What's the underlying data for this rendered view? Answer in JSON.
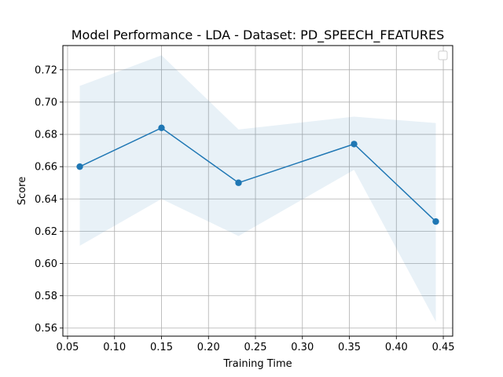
{
  "chart_data": {
    "type": "line",
    "title": "Model Performance - LDA - Dataset: PD_SPEECH_FEATURES",
    "xlabel": "Training Time",
    "ylabel": "Score",
    "xlim": [
      0.045,
      0.46
    ],
    "ylim": [
      0.555,
      0.735
    ],
    "xticks": [
      0.05,
      0.1,
      0.15,
      0.2,
      0.25,
      0.3,
      0.35,
      0.4,
      0.45
    ],
    "xtick_labels": [
      "0.05",
      "0.10",
      "0.15",
      "0.20",
      "0.25",
      "0.30",
      "0.35",
      "0.40",
      "0.45"
    ],
    "yticks": [
      0.56,
      0.58,
      0.6,
      0.62,
      0.64,
      0.66,
      0.68,
      0.7,
      0.72
    ],
    "ytick_labels": [
      "0.56",
      "0.58",
      "0.60",
      "0.62",
      "0.64",
      "0.66",
      "0.68",
      "0.70",
      "0.72"
    ],
    "grid": true,
    "legend": "top-right",
    "series": [
      {
        "x": [
          0.063,
          0.15,
          0.232,
          0.355,
          0.442
        ],
        "y": [
          0.66,
          0.684,
          0.65,
          0.674,
          0.626
        ],
        "band_upper": [
          0.71,
          0.729,
          0.683,
          0.691,
          0.687
        ],
        "band_lower": [
          0.611,
          0.64,
          0.617,
          0.658,
          0.564
        ],
        "color": "#1f77b4",
        "band_color": "#1f77b4"
      }
    ]
  }
}
